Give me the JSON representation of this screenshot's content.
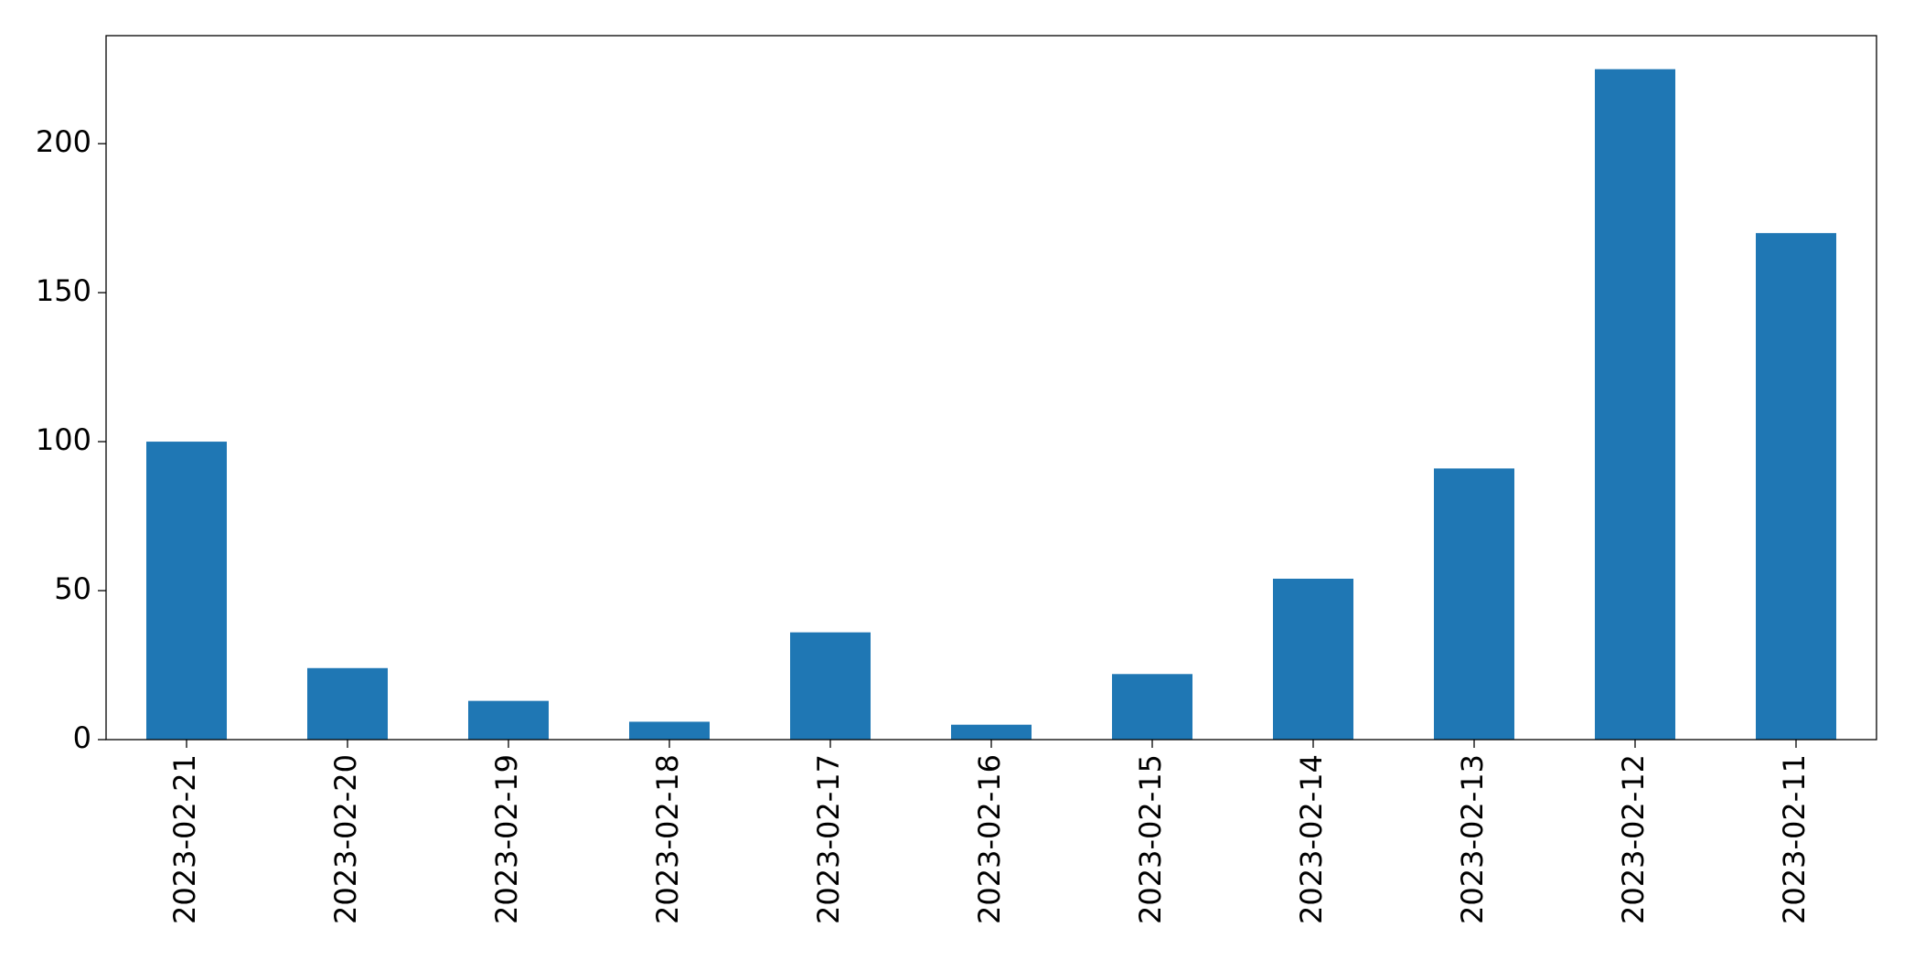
{
  "chart_data": {
    "type": "bar",
    "categories": [
      "2023-02-21",
      "2023-02-20",
      "2023-02-19",
      "2023-02-18",
      "2023-02-17",
      "2023-02-16",
      "2023-02-15",
      "2023-02-14",
      "2023-02-13",
      "2023-02-12",
      "2023-02-11"
    ],
    "values": [
      100,
      24,
      13,
      6,
      36,
      5,
      22,
      54,
      91,
      225,
      170
    ],
    "color": "#1f77b4",
    "ylim": [
      0,
      236.25
    ],
    "yticks": [
      0,
      50,
      100,
      150,
      200
    ],
    "grid": false
  }
}
